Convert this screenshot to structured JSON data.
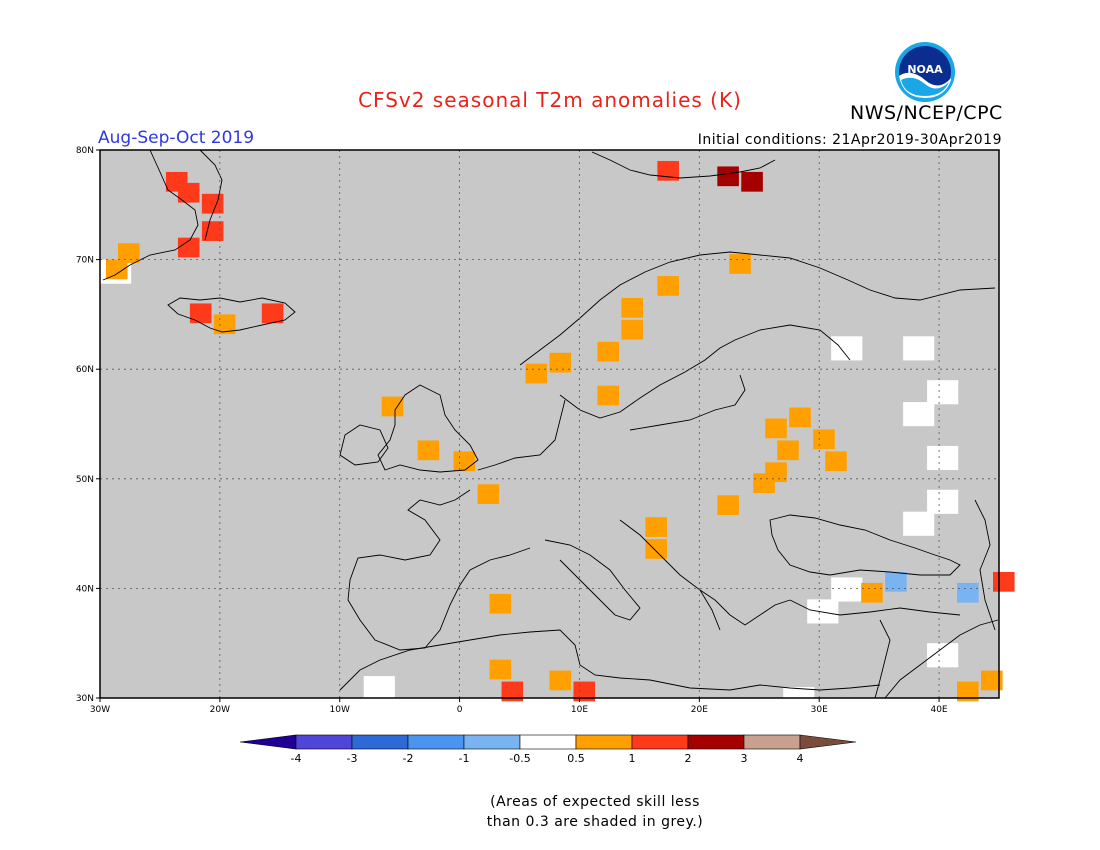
{
  "header": {
    "title": "CFSv2 seasonal T2m anomalies (K)",
    "period": "Aug-Sep-Oct 2019",
    "initial_conditions": "Initial conditions: 21Apr2019-30Apr2019",
    "agency": "NWS/NCEP/CPC",
    "logo_text": "NOAA"
  },
  "map": {
    "region": "Europe",
    "lat_range": [
      30,
      80
    ],
    "lon_range": [
      -30,
      45
    ],
    "lat_ticks": [
      "30N",
      "40N",
      "50N",
      "60N",
      "70N",
      "80N"
    ],
    "lon_ticks": [
      "30W",
      "20W",
      "10W",
      "0",
      "10E",
      "20E",
      "30E",
      "40E"
    ],
    "colors": {
      "grey_low_skill": "#c8c8c8",
      "neutral": "#ffffff",
      "warm_0_5_1": "#ffa000",
      "warm_1_2": "#ff3a1a",
      "warm_2_3": "#a50000",
      "cool_neg1_neg0_5": "#7ab3f2"
    },
    "anomaly_cells": [
      {
        "lat": 76.5,
        "lon": -23,
        "v": 1.5
      },
      {
        "lat": 77.5,
        "lon": -24,
        "v": 1.5
      },
      {
        "lat": 75.5,
        "lon": -21,
        "v": 1.5
      },
      {
        "lat": 73,
        "lon": -21,
        "v": 1.5
      },
      {
        "lat": 71.5,
        "lon": -23,
        "v": 1.5
      },
      {
        "lat": 71,
        "lon": -28,
        "v": 0.7
      },
      {
        "lat": 69.5,
        "lon": -29,
        "v": 0.7
      },
      {
        "lat": 65.5,
        "lon": -22,
        "v": 1.5
      },
      {
        "lat": 65.5,
        "lon": -16,
        "v": 1.5
      },
      {
        "lat": 64.5,
        "lon": -20,
        "v": 0.7
      },
      {
        "lat": 78.5,
        "lon": 17,
        "v": 1.5
      },
      {
        "lat": 78,
        "lon": 22,
        "v": 2.5
      },
      {
        "lat": 77.5,
        "lon": 24,
        "v": 2.5
      },
      {
        "lat": 70,
        "lon": 23,
        "v": 0.7
      },
      {
        "lat": 68,
        "lon": 17,
        "v": 0.7
      },
      {
        "lat": 66,
        "lon": 14,
        "v": 0.7
      },
      {
        "lat": 64,
        "lon": 14,
        "v": 0.7
      },
      {
        "lat": 62,
        "lon": 12,
        "v": 0.7
      },
      {
        "lat": 61,
        "lon": 8,
        "v": 0.7
      },
      {
        "lat": 60,
        "lon": 6,
        "v": 0.7
      },
      {
        "lat": 58,
        "lon": 12,
        "v": 0.7
      },
      {
        "lat": 56,
        "lon": 28,
        "v": 0.7
      },
      {
        "lat": 55,
        "lon": 26,
        "v": 0.7
      },
      {
        "lat": 54,
        "lon": 30,
        "v": 0.7
      },
      {
        "lat": 53,
        "lon": 27,
        "v": 0.7
      },
      {
        "lat": 52,
        "lon": 31,
        "v": 0.7
      },
      {
        "lat": 51,
        "lon": 26,
        "v": 0.7
      },
      {
        "lat": 50,
        "lon": 25,
        "v": 0.7
      },
      {
        "lat": 48,
        "lon": 22,
        "v": 0.7
      },
      {
        "lat": 46,
        "lon": 16,
        "v": 0.7
      },
      {
        "lat": 44,
        "lon": 16,
        "v": 0.7
      },
      {
        "lat": 57,
        "lon": -6,
        "v": 0.7
      },
      {
        "lat": 53,
        "lon": -3,
        "v": 0.7
      },
      {
        "lat": 52,
        "lon": 0,
        "v": 0.7
      },
      {
        "lat": 49,
        "lon": 2,
        "v": 0.7
      },
      {
        "lat": 33,
        "lon": 3,
        "v": 0.7
      },
      {
        "lat": 32,
        "lon": 8,
        "v": 0.7
      },
      {
        "lat": 31,
        "lon": 4,
        "v": 1.5
      },
      {
        "lat": 31,
        "lon": 10,
        "v": 1.5
      },
      {
        "lat": 32,
        "lon": 44,
        "v": 0.7
      },
      {
        "lat": 31,
        "lon": 42,
        "v": 0.7
      },
      {
        "lat": 41,
        "lon": 45,
        "v": 1.5
      },
      {
        "lat": 41,
        "lon": 36,
        "v": -0.7
      },
      {
        "lat": 40,
        "lon": 42,
        "v": -0.7
      },
      {
        "lat": 40,
        "lon": 34,
        "v": 0.7
      },
      {
        "lat": 39,
        "lon": 3,
        "v": 0.7
      }
    ],
    "neutral_cells": [
      {
        "lat": 62,
        "lon": 32
      },
      {
        "lat": 62,
        "lon": 38
      },
      {
        "lat": 58,
        "lon": 40
      },
      {
        "lat": 56,
        "lon": 38
      },
      {
        "lat": 52,
        "lon": 40
      },
      {
        "lat": 48,
        "lon": 40
      },
      {
        "lat": 46,
        "lon": 38
      },
      {
        "lat": 40,
        "lon": 32
      },
      {
        "lat": 38,
        "lon": 30
      },
      {
        "lat": 34,
        "lon": 40
      },
      {
        "lat": 30,
        "lon": 28
      },
      {
        "lat": 31,
        "lon": -7
      },
      {
        "lat": 69,
        "lon": -29
      }
    ]
  },
  "colorbar": {
    "labels": [
      "-4",
      "-3",
      "-2",
      "-1",
      "-0.5",
      "0.5",
      "1",
      "2",
      "3",
      "4"
    ],
    "colors": [
      "#1e0096",
      "#5045d9",
      "#2e6ad6",
      "#4b95f0",
      "#7ab3f2",
      "#ffffff",
      "#ffa000",
      "#ff3a1a",
      "#a50000",
      "#c9a08f",
      "#7a4c3c"
    ]
  },
  "note": {
    "line1": "(Areas of expected skill less",
    "line2": "than 0.3 are shaded in grey.)"
  }
}
